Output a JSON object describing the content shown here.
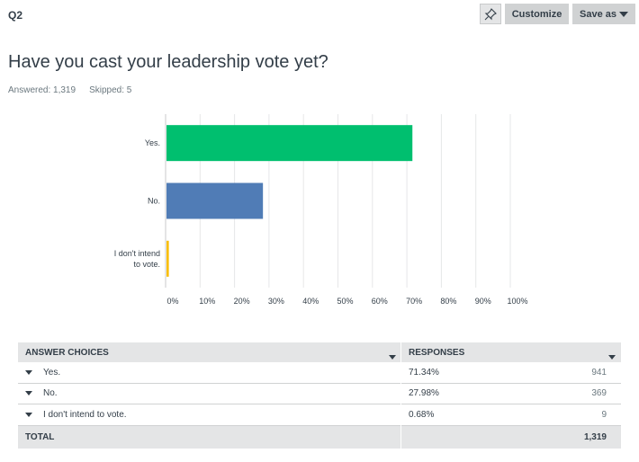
{
  "question": {
    "label": "Q2",
    "title": "Have you cast your leadership vote yet?",
    "answered": "Answered: 1,319",
    "skipped": "Skipped: 5"
  },
  "toolbar": {
    "pin_icon": "pin-icon",
    "customize_label": "Customize",
    "save_as_label": "Save as"
  },
  "chart_data": {
    "type": "bar",
    "orientation": "horizontal",
    "categories": [
      "Yes.",
      "No.",
      "I don't intend to vote."
    ],
    "category_lines": [
      [
        "Yes."
      ],
      [
        "No."
      ],
      [
        "I don't intend",
        "to vote."
      ]
    ],
    "values": [
      71.34,
      27.98,
      0.68
    ],
    "colors": [
      "#00bf6f",
      "#507cb6",
      "#f9be00"
    ],
    "xlim": [
      0,
      100
    ],
    "ticks": [
      "0%",
      "10%",
      "20%",
      "30%",
      "40%",
      "50%",
      "60%",
      "70%",
      "80%",
      "90%",
      "100%"
    ],
    "grid": true
  },
  "table": {
    "headers": [
      "ANSWER CHOICES",
      "RESPONSES"
    ],
    "rows": [
      {
        "choice": "Yes.",
        "percent": "71.34%",
        "count": "941"
      },
      {
        "choice": "No.",
        "percent": "27.98%",
        "count": "369"
      },
      {
        "choice": "I don't intend to vote.",
        "percent": "0.68%",
        "count": "9"
      }
    ],
    "total_label": "TOTAL",
    "total_value": "1,319"
  }
}
